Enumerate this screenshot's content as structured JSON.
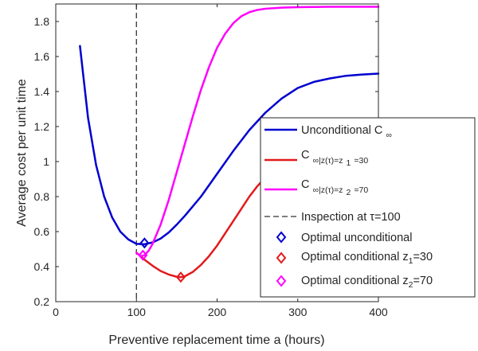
{
  "chart_data": {
    "type": "line",
    "title": "",
    "xlabel": "Preventive replacement time a (hours)",
    "ylabel": "Average cost per unit time",
    "xlim": [
      0,
      400
    ],
    "ylim": [
      0.2,
      1.9
    ],
    "xticks": [
      0,
      100,
      200,
      300,
      400
    ],
    "xtick_labels": [
      "0",
      "100",
      "200",
      "300",
      "400"
    ],
    "yticks": [
      0.2,
      0.4,
      0.6,
      0.8,
      1.0,
      1.2,
      1.4,
      1.6,
      1.8
    ],
    "ytick_labels": [
      "0.2",
      "0.4",
      "0.6",
      "0.8",
      "1",
      "1.2",
      "1.4",
      "1.6",
      "1.8"
    ],
    "grid": false,
    "legend_position": "right",
    "series": [
      {
        "name": "Unconditional C",
        "name_sub": "∞",
        "color": "#0000d0",
        "style": "solid",
        "x": [
          30,
          40,
          50,
          60,
          70,
          80,
          90,
          100,
          110,
          120,
          130,
          140,
          150,
          160,
          180,
          200,
          220,
          240,
          260,
          280,
          300,
          320,
          340,
          360,
          380,
          400
        ],
        "y": [
          1.66,
          1.25,
          0.98,
          0.8,
          0.68,
          0.6,
          0.555,
          0.53,
          0.528,
          0.538,
          0.56,
          0.595,
          0.64,
          0.69,
          0.8,
          0.93,
          1.06,
          1.18,
          1.28,
          1.36,
          1.42,
          1.455,
          1.475,
          1.49,
          1.497,
          1.502
        ]
      },
      {
        "name": "C",
        "name_sub": "∞|z(τ)=z",
        "name_sub2": "1",
        "name_suffix": "=30",
        "color": "#e31a1c",
        "style": "solid",
        "x": [
          100,
          110,
          120,
          130,
          140,
          150,
          155,
          160,
          170,
          180,
          190,
          200,
          210,
          220,
          230,
          240,
          250,
          260,
          270,
          280,
          300
        ],
        "y": [
          0.48,
          0.44,
          0.405,
          0.375,
          0.355,
          0.342,
          0.34,
          0.345,
          0.37,
          0.41,
          0.46,
          0.52,
          0.59,
          0.66,
          0.73,
          0.8,
          0.86,
          0.91,
          0.955,
          0.99,
          1.04
        ]
      },
      {
        "name": "C",
        "name_sub": "∞|z(τ)=z",
        "name_sub2": "2",
        "name_suffix": "=70",
        "color": "#ff00ff",
        "style": "solid",
        "x": [
          100,
          105,
          110,
          115,
          120,
          130,
          140,
          150,
          160,
          170,
          180,
          190,
          200,
          210,
          220,
          230,
          240,
          250,
          260,
          280,
          300,
          320,
          340,
          360,
          380,
          400
        ],
        "y": [
          0.48,
          0.46,
          0.465,
          0.49,
          0.53,
          0.64,
          0.78,
          0.94,
          1.1,
          1.26,
          1.41,
          1.54,
          1.65,
          1.73,
          1.79,
          1.83,
          1.853,
          1.866,
          1.873,
          1.879,
          1.882,
          1.883,
          1.884,
          1.884,
          1.884,
          1.884
        ]
      }
    ],
    "reference_lines": [
      {
        "name": "Inspection at ",
        "name_symbol": "τ",
        "name_suffix": "=100",
        "x": 100,
        "color": "#333333",
        "style": "dashed"
      }
    ],
    "markers": [
      {
        "name": "Optimal unconditional",
        "x": 110,
        "y": 0.535,
        "color": "#0000d0",
        "shape": "diamond"
      },
      {
        "name": "Optimal conditional z",
        "name_sub": "1",
        "name_suffix": "=30",
        "x": 155,
        "y": 0.34,
        "color": "#e31a1c",
        "shape": "diamond"
      },
      {
        "name": "Optimal conditional z",
        "name_sub": "2",
        "name_suffix": "=70",
        "x": 108,
        "y": 0.465,
        "color": "#ff00ff",
        "shape": "diamond"
      }
    ]
  }
}
